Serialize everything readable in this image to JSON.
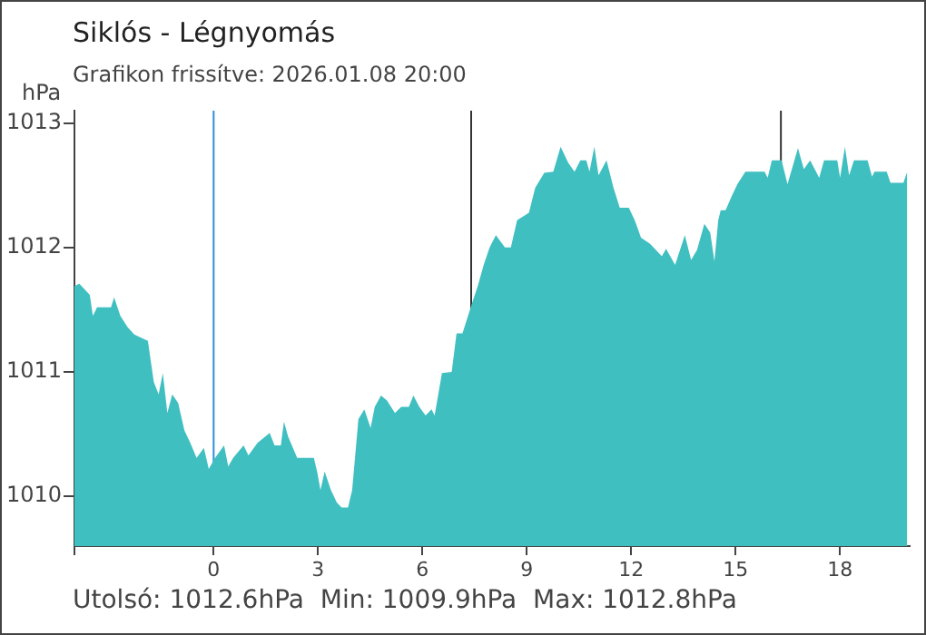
{
  "chart_data": {
    "type": "area",
    "title": "Siklós - Légnyomás",
    "subtitle": "Grafikon frissítve: 2026.01.08 20:00",
    "ylabel": "hPa",
    "annotations": [
      "Utolsó: 1012.6hPa  Min: 1009.9hPa  Max: 1012.8hPa"
    ],
    "x": [
      -4.0,
      -3.86,
      -3.56,
      -3.47,
      -3.35,
      -2.95,
      -2.86,
      -2.68,
      -2.47,
      -2.28,
      -1.89,
      -1.72,
      -1.58,
      -1.46,
      -1.33,
      -1.19,
      -1.02,
      -0.84,
      -0.67,
      -0.49,
      -0.28,
      -0.14,
      0.04,
      0.3,
      0.42,
      0.56,
      0.86,
      1.0,
      1.26,
      1.61,
      1.75,
      1.93,
      2.02,
      2.14,
      2.4,
      2.88,
      2.98,
      3.07,
      3.19,
      3.37,
      3.54,
      3.68,
      3.86,
      3.98,
      4.16,
      4.33,
      4.51,
      4.63,
      4.81,
      4.98,
      5.21,
      5.39,
      5.61,
      5.74,
      5.91,
      6.09,
      6.26,
      6.35,
      6.56,
      6.84,
      6.98,
      7.15,
      7.41,
      7.59,
      7.76,
      7.93,
      8.11,
      8.37,
      8.54,
      8.72,
      9.06,
      9.24,
      9.5,
      9.76,
      9.97,
      10.19,
      10.37,
      10.54,
      10.71,
      10.8,
      10.94,
      11.06,
      11.29,
      11.49,
      11.67,
      11.93,
      12.1,
      12.28,
      12.54,
      12.88,
      13.0,
      13.26,
      13.54,
      13.72,
      13.89,
      14.1,
      14.27,
      14.39,
      14.5,
      14.57,
      14.71,
      14.88,
      15.05,
      15.28,
      15.83,
      15.92,
      16.04,
      16.32,
      16.49,
      16.79,
      16.96,
      17.14,
      17.31,
      17.4,
      17.54,
      17.92,
      18.0,
      18.14,
      18.26,
      18.4,
      18.79,
      18.92,
      18.99,
      19.34,
      19.45,
      19.82,
      19.93
    ],
    "series": [
      {
        "color": "#40bfc1",
        "values": [
          1011.69,
          1011.71,
          1011.62,
          1011.45,
          1011.52,
          1011.52,
          1011.6,
          1011.45,
          1011.36,
          1011.3,
          1011.25,
          1010.92,
          1010.82,
          1010.99,
          1010.67,
          1010.82,
          1010.75,
          1010.53,
          1010.43,
          1010.31,
          1010.39,
          1010.22,
          1010.31,
          1010.41,
          1010.24,
          1010.31,
          1010.41,
          1010.33,
          1010.43,
          1010.51,
          1010.41,
          1010.41,
          1010.6,
          1010.48,
          1010.31,
          1010.31,
          1010.19,
          1010.05,
          1010.2,
          1010.05,
          1009.95,
          1009.91,
          1009.91,
          1010.05,
          1010.62,
          1010.7,
          1010.55,
          1010.72,
          1010.81,
          1010.77,
          1010.67,
          1010.72,
          1010.72,
          1010.81,
          1010.72,
          1010.65,
          1010.7,
          1010.65,
          1010.99,
          1011.0,
          1011.31,
          1011.31,
          1011.54,
          1011.69,
          1011.86,
          1012.0,
          1012.1,
          1012.0,
          1012.0,
          1012.22,
          1012.28,
          1012.48,
          1012.6,
          1012.61,
          1012.81,
          1012.68,
          1012.61,
          1012.7,
          1012.7,
          1012.61,
          1012.81,
          1012.58,
          1012.7,
          1012.48,
          1012.32,
          1012.32,
          1012.22,
          1012.08,
          1012.03,
          1011.93,
          1011.99,
          1011.86,
          1012.1,
          1011.9,
          1011.98,
          1012.19,
          1012.12,
          1011.89,
          1012.22,
          1012.3,
          1012.3,
          1012.41,
          1012.51,
          1012.61,
          1012.61,
          1012.56,
          1012.7,
          1012.7,
          1012.51,
          1012.8,
          1012.63,
          1012.7,
          1012.61,
          1012.56,
          1012.7,
          1012.7,
          1012.56,
          1012.81,
          1012.58,
          1012.7,
          1012.7,
          1012.57,
          1012.61,
          1012.61,
          1012.52,
          1012.52,
          1012.61
        ]
      }
    ],
    "xlim": [
      -4,
      20
    ],
    "xticks": [
      {
        "value": -4,
        "label": null
      },
      0,
      3,
      6,
      9,
      12,
      15,
      18
    ],
    "ylim": [
      1009.6,
      1013.1
    ],
    "yticks": [
      1010,
      1011,
      1012,
      1013
    ],
    "ref_lines": [
      {
        "axis": "x",
        "value": 0,
        "color": "#2a8fd8"
      },
      {
        "axis": "x",
        "value": 7.4,
        "color": "#333333"
      },
      {
        "axis": "x",
        "value": 16.3,
        "color": "#333333"
      }
    ],
    "grid": false,
    "legend": false,
    "marker": "none"
  }
}
